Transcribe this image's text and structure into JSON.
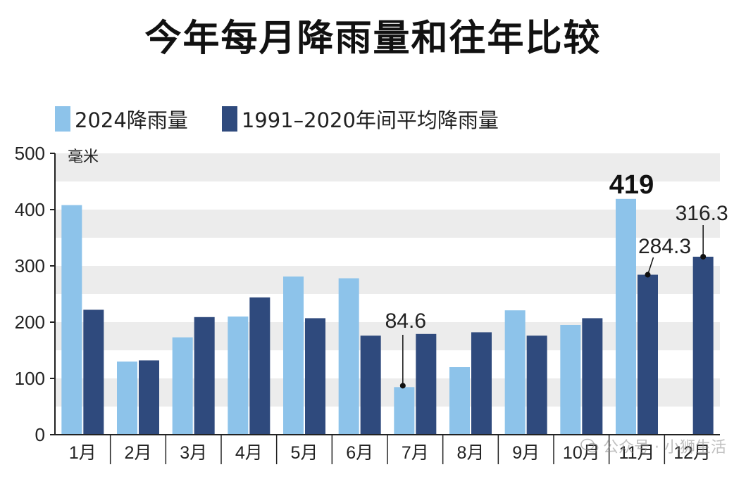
{
  "chart_data": {
    "type": "bar",
    "title": "今年每月降雨量和往年比较",
    "ylabel": "毫米",
    "ylim": [
      0,
      500
    ],
    "yticks": [
      "0",
      "100",
      "200",
      "300",
      "400",
      "500"
    ],
    "categories": [
      "1月",
      "2月",
      "3月",
      "4月",
      "5月",
      "6月",
      "7月",
      "8月",
      "9月",
      "10月",
      "11月",
      "12月"
    ],
    "series": [
      {
        "name": "2024降雨量",
        "color": "#8dc3ea",
        "values": [
          408,
          130,
          173,
          210,
          281,
          278,
          84.6,
          120,
          221,
          195,
          419,
          null
        ]
      },
      {
        "name": "1991–2020年间平均降雨量",
        "color": "#2f4a7d",
        "values": [
          222,
          132,
          209,
          244,
          207,
          176,
          179,
          182,
          176,
          207,
          284.3,
          316.3
        ]
      }
    ],
    "annotations": [
      {
        "text": "84.6",
        "category": "7月",
        "series": 0,
        "value": 84.6
      },
      {
        "text": "419",
        "category": "11月",
        "series": 0,
        "value": 419
      },
      {
        "text": "284.3",
        "category": "11月",
        "series": 1,
        "value": 284.3
      },
      {
        "text": "316.3",
        "category": "12月",
        "series": 1,
        "value": 316.3
      }
    ],
    "grid": "alternating-bands",
    "legend": "top-left"
  },
  "watermark": "公众号 · 小狮生活",
  "watermark_icon": "wechat-icon"
}
